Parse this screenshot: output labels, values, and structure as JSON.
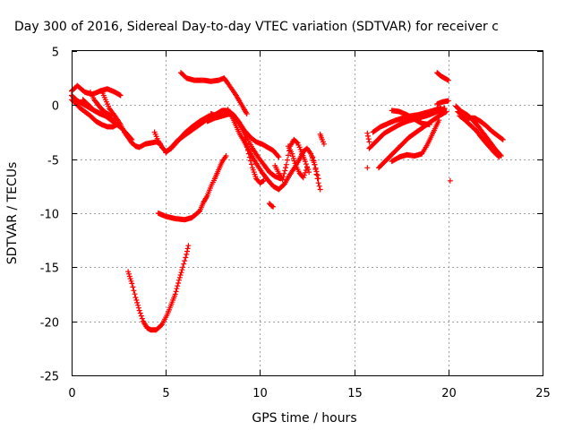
{
  "chart_data": {
    "type": "scatter",
    "title": "Day 300 of 2016, Sidereal Day-to-day VTEC variation (SDTVAR) for receiver c",
    "xlabel": "GPS time / hours",
    "ylabel": "SDTVAR / TECUs",
    "xlim": [
      0,
      25
    ],
    "ylim": [
      -25,
      5
    ],
    "xticks": [
      "0",
      "5",
      "10",
      "15",
      "20",
      "25"
    ],
    "yticks": [
      "5",
      "0",
      "-5",
      "-10",
      "-15",
      "-20",
      "-25"
    ],
    "grid": true,
    "marker": "+",
    "color": "#ff0000",
    "series": [
      {
        "x": [
          0.0,
          0.3,
          0.7,
          1.1,
          1.5,
          1.9,
          2.3,
          2.6
        ],
        "y": [
          1.3,
          1.8,
          1.2,
          1.0,
          1.3,
          1.5,
          1.2,
          0.9
        ]
      },
      {
        "x": [
          0.0,
          0.2,
          0.4,
          0.7,
          1.0,
          1.3,
          1.6,
          1.9,
          2.2,
          2.4
        ],
        "y": [
          0.5,
          0.2,
          -0.2,
          -0.6,
          -1.0,
          -1.5,
          -1.8,
          -2.0,
          -2.0,
          -1.8
        ]
      },
      {
        "x": [
          0.0,
          0.3,
          0.6,
          1.0,
          1.3,
          1.7,
          2.0,
          2.3
        ],
        "y": [
          0.9,
          0.4,
          0.1,
          -0.3,
          -0.6,
          -0.9,
          -1.2,
          -1.4
        ]
      },
      {
        "x": [
          0.6,
          0.9,
          1.2,
          1.5,
          1.8,
          2.1,
          2.4,
          2.7,
          3.0,
          3.2
        ],
        "y": [
          0.5,
          0.0,
          -0.5,
          -0.8,
          -1.0,
          -1.4,
          -1.8,
          -2.2,
          -2.8,
          -3.2
        ]
      },
      {
        "x": [
          1.0,
          1.2,
          1.5,
          1.8,
          2.1
        ],
        "y": [
          1.2,
          0.5,
          -0.2,
          -0.7,
          -1.0
        ]
      },
      {
        "x": [
          1.6,
          1.8,
          2.0,
          2.3,
          2.6,
          2.8,
          3.0,
          3.2,
          3.4,
          3.6,
          3.9,
          4.2,
          4.5,
          4.7
        ],
        "y": [
          1.3,
          0.5,
          -0.3,
          -1.0,
          -1.8,
          -2.5,
          -3.0,
          -3.5,
          -3.8,
          -3.9,
          -3.6,
          -3.5,
          -3.4,
          -3.6
        ]
      },
      {
        "x": [
          4.4,
          4.6,
          4.8,
          5.0,
          5.3,
          5.6,
          6.0,
          6.4,
          6.8,
          7.2,
          7.6,
          8.0,
          8.3
        ],
        "y": [
          -2.5,
          -3.3,
          -3.9,
          -4.3,
          -4.0,
          -3.4,
          -2.6,
          -2.0,
          -1.5,
          -1.1,
          -0.9,
          -0.8,
          -0.8
        ]
      },
      {
        "x": [
          5.0,
          5.3,
          5.6,
          6.0,
          6.4,
          6.8,
          7.2,
          7.5,
          7.8,
          8.0,
          8.2,
          8.4
        ],
        "y": [
          -4.4,
          -3.9,
          -3.3,
          -2.8,
          -2.3,
          -1.8,
          -1.3,
          -1.0,
          -0.7,
          -0.5,
          -0.5,
          -0.8
        ]
      },
      {
        "x": [
          4.6,
          5.0,
          5.5,
          6.0,
          6.4,
          6.8,
          7.0,
          7.2,
          7.4,
          7.6,
          7.8,
          8.0,
          8.2
        ],
        "y": [
          -10.0,
          -10.3,
          -10.5,
          -10.6,
          -10.4,
          -9.8,
          -9.0,
          -8.4,
          -7.5,
          -6.8,
          -6.0,
          -5.2,
          -4.7
        ]
      },
      {
        "x": [
          3.0,
          3.2,
          3.4,
          3.6,
          3.8,
          4.0,
          4.2,
          4.5,
          4.8,
          5.1,
          5.3,
          5.5,
          5.7,
          5.9,
          6.1,
          6.2
        ],
        "y": [
          -15.4,
          -16.5,
          -17.8,
          -19.0,
          -20.0,
          -20.6,
          -20.8,
          -20.8,
          -20.3,
          -19.3,
          -18.4,
          -17.5,
          -16.2,
          -15.0,
          -13.8,
          -13.0
        ]
      },
      {
        "x": [
          5.8,
          6.1,
          6.5,
          7.0,
          7.4,
          7.8,
          8.1,
          8.3,
          8.5,
          8.7,
          8.9,
          9.1,
          9.3
        ],
        "y": [
          3.0,
          2.5,
          2.3,
          2.3,
          2.2,
          2.3,
          2.5,
          2.0,
          1.5,
          1.0,
          0.4,
          -0.2,
          -0.8
        ]
      },
      {
        "x": [
          7.4,
          7.7,
          8.0,
          8.3,
          8.6,
          8.9,
          9.2,
          9.5,
          9.8,
          10.1,
          10.4,
          10.7,
          11.0
        ],
        "y": [
          -0.8,
          -1.0,
          -0.6,
          -0.5,
          -0.9,
          -1.6,
          -2.4,
          -3.0,
          -3.4,
          -3.6,
          -3.9,
          -4.2,
          -4.8
        ]
      },
      {
        "x": [
          7.2,
          7.6,
          8.0,
          8.4,
          8.7,
          9.0,
          9.3,
          9.6,
          9.9,
          10.2,
          10.5,
          10.8,
          11.1
        ],
        "y": [
          -1.5,
          -1.2,
          -1.0,
          -0.8,
          -1.2,
          -2.0,
          -3.0,
          -4.0,
          -4.8,
          -5.5,
          -6.2,
          -6.6,
          -6.8
        ]
      },
      {
        "x": [
          8.3,
          8.6,
          8.9,
          9.2,
          9.5,
          9.8,
          10.1,
          10.4,
          10.7,
          11.0,
          11.3,
          11.6,
          11.9,
          12.1,
          12.3,
          12.5,
          12.7,
          12.9,
          13.1
        ],
        "y": [
          -0.4,
          -1.4,
          -2.6,
          -3.5,
          -4.5,
          -5.4,
          -6.2,
          -6.9,
          -7.5,
          -7.8,
          -7.3,
          -6.4,
          -5.6,
          -5.0,
          -4.3,
          -4.0,
          -4.5,
          -5.5,
          -6.8
        ]
      },
      {
        "x": [
          9.2,
          9.4,
          9.6,
          9.8,
          10.0,
          10.2
        ],
        "y": [
          -3.0,
          -4.5,
          -5.8,
          -6.8,
          -7.2,
          -7.0
        ]
      },
      {
        "x": [
          10.5,
          10.6,
          10.7
        ],
        "y": [
          -9.1,
          -9.3,
          -9.4
        ]
      },
      {
        "x": [
          10.8,
          11.0,
          11.2,
          11.4,
          11.6,
          11.8,
          12.0,
          12.2,
          12.4,
          12.6
        ],
        "y": [
          -5.6,
          -6.3,
          -6.9,
          -5.5,
          -3.8,
          -3.2,
          -3.5,
          -4.3,
          -5.2,
          -6.2
        ]
      },
      {
        "x": [
          11.5,
          11.7,
          11.9,
          12.1,
          12.3,
          12.5
        ],
        "y": [
          -3.8,
          -4.5,
          -5.6,
          -6.3,
          -6.7,
          -5.8
        ]
      },
      {
        "x": [
          12.8,
          12.9,
          13.0,
          13.1,
          13.2
        ],
        "y": [
          -4.8,
          -5.5,
          -6.4,
          -7.2,
          -7.8
        ]
      },
      {
        "x": [
          13.2,
          13.3,
          13.4
        ],
        "y": [
          -2.7,
          -3.2,
          -3.6
        ]
      },
      {
        "x": [
          15.7,
          15.8
        ],
        "y": [
          -2.6,
          -3.4
        ]
      },
      {
        "x": [
          15.7
        ],
        "y": [
          -5.8
        ]
      },
      {
        "x": [
          15.8,
          16.2,
          16.6,
          17.0,
          17.4,
          17.8,
          18.2,
          18.6,
          19.0,
          19.4,
          19.8
        ],
        "y": [
          -4.0,
          -3.3,
          -2.6,
          -2.2,
          -1.8,
          -1.5,
          -1.3,
          -1.1,
          -0.9,
          -0.6,
          -0.3
        ]
      },
      {
        "x": [
          16.0,
          16.4,
          16.8,
          17.2,
          17.6,
          18.0,
          18.4,
          18.8,
          19.2,
          19.6
        ],
        "y": [
          -2.5,
          -2.0,
          -1.7,
          -1.4,
          -1.2,
          -1.0,
          -0.9,
          -0.7,
          -0.5,
          -0.3
        ]
      },
      {
        "x": [
          16.3,
          16.7,
          17.1,
          17.5,
          17.9,
          18.3,
          18.7,
          19.1,
          19.5,
          19.9
        ],
        "y": [
          -5.8,
          -5.1,
          -4.4,
          -3.7,
          -3.0,
          -2.5,
          -2.0,
          -1.5,
          -1.0,
          -0.6
        ]
      },
      {
        "x": [
          17.0,
          17.4,
          17.8,
          18.2,
          18.6,
          18.9,
          19.2,
          19.5
        ],
        "y": [
          -5.2,
          -4.8,
          -4.6,
          -4.7,
          -4.5,
          -3.6,
          -2.5,
          -1.4
        ]
      },
      {
        "x": [
          17.0,
          17.4,
          17.8,
          18.2,
          18.6,
          19.0
        ],
        "y": [
          -0.5,
          -0.6,
          -0.9,
          -1.3,
          -1.7,
          -1.8
        ]
      },
      {
        "x": [
          19.4,
          19.6,
          19.8,
          20.0
        ],
        "y": [
          3.0,
          2.7,
          2.5,
          2.3
        ]
      },
      {
        "x": [
          19.4,
          19.7,
          20.0
        ],
        "y": [
          0.1,
          0.3,
          0.4
        ]
      },
      {
        "x": [
          20.1
        ],
        "y": [
          -7.0
        ]
      },
      {
        "x": [
          20.4,
          20.7,
          21.0,
          21.3,
          21.6,
          21.9,
          22.2,
          22.5,
          22.8
        ],
        "y": [
          -0.1,
          -0.6,
          -0.9,
          -1.4,
          -2.0,
          -2.7,
          -3.4,
          -4.1,
          -4.7
        ]
      },
      {
        "x": [
          20.5,
          20.8,
          21.1,
          21.4,
          21.7,
          22.0,
          22.3,
          22.6,
          22.9
        ],
        "y": [
          -0.6,
          -1.0,
          -1.2,
          -1.2,
          -1.5,
          -1.9,
          -2.4,
          -2.8,
          -3.2
        ]
      },
      {
        "x": [
          20.6,
          20.9,
          21.2,
          21.5,
          21.8,
          22.1,
          22.4,
          22.7
        ],
        "y": [
          -1.0,
          -1.4,
          -1.9,
          -2.4,
          -3.1,
          -3.7,
          -4.3,
          -4.8
        ]
      }
    ]
  }
}
